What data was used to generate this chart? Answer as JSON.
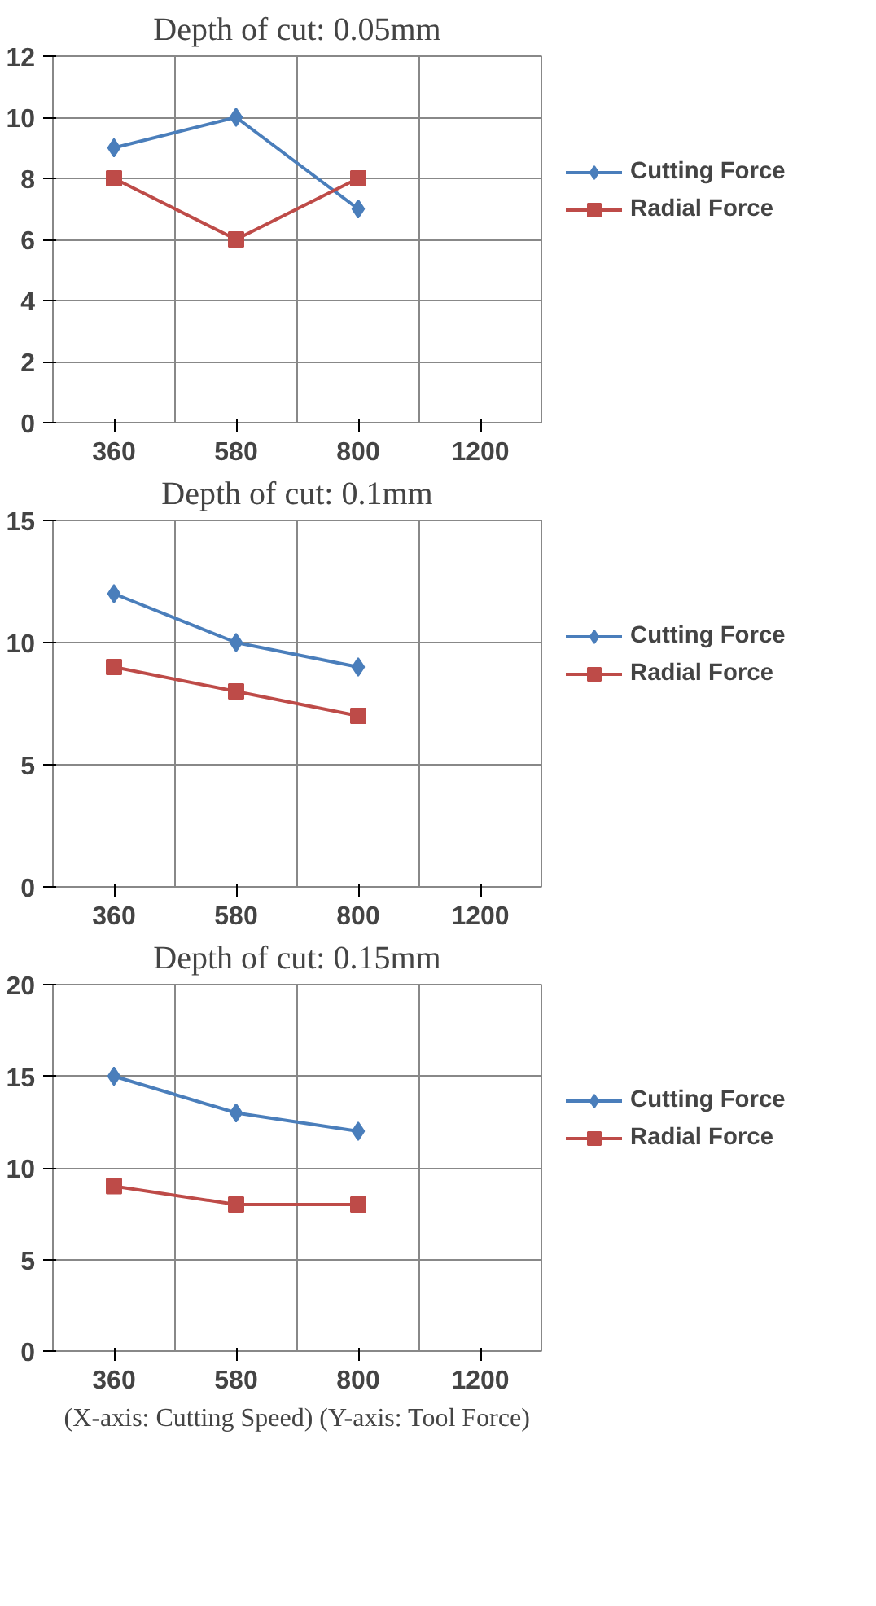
{
  "chart_data": [
    {
      "type": "line",
      "title": "Depth of cut: 0.05mm",
      "categories": [
        "360",
        "580",
        "800",
        "1200"
      ],
      "ylim": [
        0,
        12
      ],
      "yticks": [
        0,
        2,
        4,
        6,
        8,
        10,
        12
      ],
      "grid": true,
      "legend": "right",
      "series": [
        {
          "name": "Cutting Force",
          "color": "#4a7ebb",
          "marker": "diamond",
          "values": [
            9,
            10,
            7,
            null
          ]
        },
        {
          "name": "Radial Force",
          "color": "#be4b48",
          "marker": "square",
          "values": [
            8,
            6,
            8,
            null
          ]
        }
      ]
    },
    {
      "type": "line",
      "title": "Depth of cut: 0.1mm",
      "categories": [
        "360",
        "580",
        "800",
        "1200"
      ],
      "ylim": [
        0,
        15
      ],
      "yticks": [
        0,
        5,
        10,
        15
      ],
      "grid": true,
      "legend": "right",
      "series": [
        {
          "name": "Cutting Force",
          "color": "#4a7ebb",
          "marker": "diamond",
          "values": [
            12,
            10,
            9,
            null
          ]
        },
        {
          "name": "Radial Force",
          "color": "#be4b48",
          "marker": "square",
          "values": [
            9,
            8,
            7,
            null
          ]
        }
      ]
    },
    {
      "type": "line",
      "title": "Depth of cut: 0.15mm",
      "categories": [
        "360",
        "580",
        "800",
        "1200"
      ],
      "ylim": [
        0,
        20
      ],
      "yticks": [
        0,
        5,
        10,
        15,
        20
      ],
      "grid": true,
      "legend": "right",
      "annotations": [
        "(X-axis: Cutting Speed) (Y-axis: Tool Force)"
      ],
      "series": [
        {
          "name": "Cutting Force",
          "color": "#4a7ebb",
          "marker": "diamond",
          "values": [
            15,
            13,
            12,
            null
          ]
        },
        {
          "name": "Radial Force",
          "color": "#be4b48",
          "marker": "square",
          "values": [
            9,
            8,
            8,
            null
          ]
        }
      ]
    }
  ]
}
